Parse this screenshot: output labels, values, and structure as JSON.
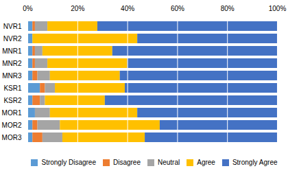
{
  "chart_data": {
    "type": "bar",
    "orientation": "horizontal",
    "stacked": true,
    "categories": [
      "NVR1",
      "NVR2",
      "MNR1",
      "MNR2",
      "MNR3",
      "KSR1",
      "KSR2",
      "MOR1",
      "MOR2",
      "MOR3"
    ],
    "series": [
      {
        "name": "Strongly Disagree",
        "color": "#5b9bd5",
        "values": [
          2,
          2,
          2,
          2,
          2,
          5,
          2,
          3,
          2,
          2
        ]
      },
      {
        "name": "Disagree",
        "color": "#ed7d31",
        "values": [
          1,
          0,
          1,
          1,
          2,
          2,
          3,
          0,
          2,
          4
        ]
      },
      {
        "name": "Neutral",
        "color": "#a5a5a5",
        "values": [
          5,
          0,
          3,
          5,
          5,
          4,
          2,
          6,
          9,
          8
        ]
      },
      {
        "name": "Agree",
        "color": "#ffc000",
        "values": [
          20,
          42,
          28,
          32,
          28,
          28,
          24,
          35,
          40,
          33
        ]
      },
      {
        "name": "Strongly Agree",
        "color": "#4472c4",
        "values": [
          72,
          56,
          66,
          60,
          63,
          61,
          69,
          56,
          47,
          53
        ]
      }
    ],
    "xlim": [
      0,
      100
    ],
    "xticks": [
      {
        "value": 0,
        "label": "0%"
      },
      {
        "value": 20,
        "label": "20%"
      },
      {
        "value": 40,
        "label": "40%"
      },
      {
        "value": 60,
        "label": "60%"
      },
      {
        "value": 80,
        "label": "80%"
      },
      {
        "value": 100,
        "label": "100%"
      }
    ],
    "grid": true,
    "legend": "bottom"
  }
}
